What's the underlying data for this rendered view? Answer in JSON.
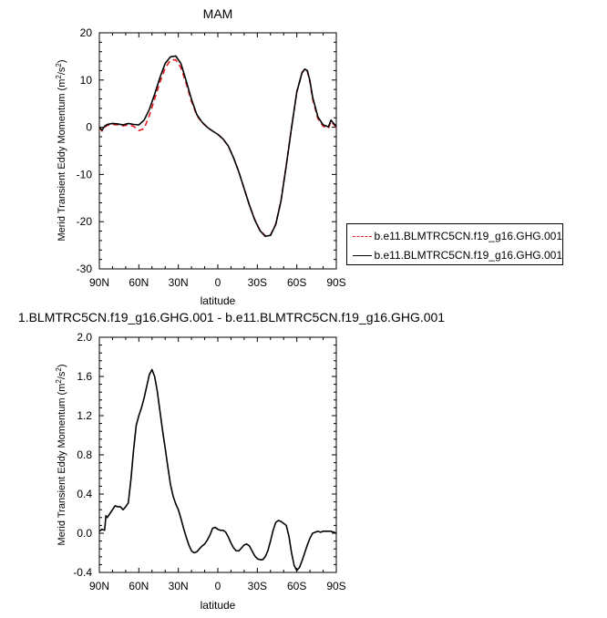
{
  "chart_data": [
    {
      "type": "line",
      "title": "MAM",
      "xlabel": "latitude",
      "ylabel": "Merid Transient Eddy Momentum (m²/s²)",
      "ylabel_main": "Merid Transient Eddy Momentum (m",
      "ylabel_sup": "2",
      "ylabel_mid": "/s",
      "ylabel_sup2": "2",
      "ylabel_end": ")",
      "xlim": [
        90,
        -90
      ],
      "ylim": [
        -30,
        20
      ],
      "x_ticks": [
        90,
        60,
        30,
        0,
        -30,
        -60,
        -90
      ],
      "x_tick_labels": [
        "90N",
        "60N",
        "30N",
        "0",
        "30S",
        "60S",
        "90S"
      ],
      "y_ticks": [
        20,
        10,
        0,
        -10,
        -20,
        -30
      ],
      "y_tick_labels": [
        "20",
        "10",
        "0",
        "-10",
        "-20",
        "-30"
      ],
      "grid": false,
      "legend_position": "right",
      "series": [
        {
          "name": "b.e11.BLMTRC5CN.f19_g16.GHG.001",
          "color": "#e41a1c",
          "dash": "dashed",
          "x": [
            90,
            88,
            86,
            84,
            80,
            76,
            72,
            68,
            64,
            60,
            56,
            52,
            48,
            44,
            40,
            36,
            32,
            28,
            24,
            20,
            16,
            12,
            8,
            4,
            0,
            -4,
            -8,
            -12,
            -16,
            -20,
            -24,
            -28,
            -32,
            -36,
            -40,
            -44,
            -48,
            -52,
            -56,
            -60,
            -64,
            -66,
            -68,
            -70,
            -72,
            -76,
            -80,
            -84,
            -86,
            -88,
            -90
          ],
          "values": [
            0.0,
            -0.8,
            0.0,
            0.4,
            0.6,
            0.5,
            0.3,
            0.5,
            0.2,
            -0.7,
            -0.3,
            2.5,
            6.0,
            9.5,
            12.5,
            14.2,
            14.3,
            12.6,
            9.2,
            5.5,
            2.5,
            1.0,
            0.0,
            -0.8,
            -1.5,
            -2.5,
            -4.0,
            -6.5,
            -9.5,
            -13.0,
            -16.5,
            -19.5,
            -21.8,
            -23.0,
            -22.8,
            -20.5,
            -15.5,
            -8.0,
            0.0,
            7.5,
            11.5,
            12.2,
            11.8,
            9.5,
            6.0,
            1.8,
            0.2,
            -0.2,
            1.2,
            0.6,
            0.0
          ]
        },
        {
          "name": "b.e11.BLMTRC5CN.f19_g16.GHG.001",
          "color": "#000000",
          "dash": "solid",
          "x": [
            90,
            88,
            86,
            84,
            80,
            76,
            72,
            68,
            64,
            60,
            56,
            52,
            48,
            44,
            40,
            36,
            32,
            28,
            24,
            20,
            16,
            12,
            8,
            4,
            0,
            -4,
            -8,
            -12,
            -16,
            -20,
            -24,
            -28,
            -32,
            -36,
            -40,
            -44,
            -48,
            -52,
            -56,
            -60,
            -64,
            -66,
            -68,
            -70,
            -72,
            -76,
            -80,
            -84,
            -86,
            -88,
            -90
          ],
          "values": [
            0.0,
            -0.6,
            0.2,
            0.6,
            0.8,
            0.7,
            0.5,
            0.8,
            0.6,
            0.5,
            1.5,
            3.8,
            7.0,
            10.5,
            13.5,
            14.9,
            15.1,
            13.5,
            9.8,
            5.9,
            2.7,
            1.1,
            0.0,
            -0.8,
            -1.5,
            -2.5,
            -4.0,
            -6.5,
            -9.5,
            -13.0,
            -16.5,
            -19.6,
            -21.9,
            -23.1,
            -22.9,
            -20.6,
            -15.6,
            -8.1,
            -0.1,
            7.5,
            11.6,
            12.3,
            12.0,
            9.8,
            6.4,
            2.2,
            0.5,
            0.1,
            1.5,
            0.8,
            0.2
          ]
        }
      ]
    },
    {
      "type": "line",
      "title": "1.BLMTRC5CN.f19_g16.GHG.001 - b.e11.BLMTRC5CN.f19_g16.GHG.001",
      "xlabel": "latitude",
      "ylabel": "Merid Transient Eddy Momentum (m²/s²)",
      "ylabel_main": "Merid Transient Eddy Momentum (m",
      "ylabel_sup": "2",
      "ylabel_mid": "/s",
      "ylabel_sup2": "2",
      "ylabel_end": ")",
      "xlim": [
        90,
        -90
      ],
      "ylim": [
        -0.4,
        2.0
      ],
      "x_ticks": [
        90,
        60,
        30,
        0,
        -30,
        -60,
        -90
      ],
      "x_tick_labels": [
        "90N",
        "60N",
        "30N",
        "0",
        "30S",
        "60S",
        "90S"
      ],
      "y_ticks": [
        2.0,
        1.6,
        1.2,
        0.8,
        0.4,
        0.0,
        -0.4
      ],
      "y_tick_labels": [
        "2.0",
        "1.6",
        "1.2",
        "0.8",
        "0.4",
        "0.0",
        "-0.4"
      ],
      "grid": false,
      "series": [
        {
          "color": "#000000",
          "dash": "solid",
          "x": [
            90,
            88,
            86,
            85,
            84,
            82,
            80,
            78,
            76,
            74,
            72,
            70,
            68,
            66,
            64,
            62,
            60,
            58,
            56,
            54,
            52,
            50,
            48,
            46,
            44,
            42,
            40,
            38,
            36,
            34,
            32,
            30,
            28,
            26,
            24,
            22,
            20,
            18,
            16,
            14,
            12,
            10,
            8,
            6,
            4,
            2,
            0,
            -2,
            -4,
            -6,
            -8,
            -10,
            -12,
            -14,
            -16,
            -18,
            -20,
            -22,
            -24,
            -26,
            -28,
            -30,
            -32,
            -34,
            -36,
            -38,
            -40,
            -42,
            -44,
            -46,
            -48,
            -50,
            -52,
            -54,
            -56,
            -58,
            -60,
            -62,
            -64,
            -66,
            -68,
            -70,
            -72,
            -74,
            -76,
            -78,
            -80,
            -82,
            -84,
            -86,
            -88,
            -90
          ],
          "values": [
            0.02,
            0.04,
            0.03,
            0.18,
            0.16,
            0.2,
            0.24,
            0.28,
            0.27,
            0.27,
            0.24,
            0.27,
            0.31,
            0.55,
            0.85,
            1.1,
            1.2,
            1.28,
            1.38,
            1.5,
            1.62,
            1.67,
            1.6,
            1.45,
            1.25,
            1.05,
            0.87,
            0.68,
            0.5,
            0.38,
            0.3,
            0.24,
            0.15,
            0.05,
            -0.04,
            -0.12,
            -0.18,
            -0.2,
            -0.19,
            -0.16,
            -0.13,
            -0.11,
            -0.07,
            -0.02,
            0.05,
            0.06,
            0.04,
            0.03,
            0.03,
            0.01,
            -0.04,
            -0.1,
            -0.15,
            -0.18,
            -0.18,
            -0.15,
            -0.12,
            -0.11,
            -0.13,
            -0.18,
            -0.23,
            -0.26,
            -0.27,
            -0.27,
            -0.24,
            -0.18,
            -0.08,
            0.03,
            0.11,
            0.13,
            0.12,
            0.1,
            0.08,
            -0.03,
            -0.2,
            -0.33,
            -0.38,
            -0.35,
            -0.28,
            -0.2,
            -0.12,
            -0.05,
            0.0,
            0.01,
            0.02,
            0.01,
            0.02,
            0.02,
            0.02,
            0.02,
            0.01,
            0.0
          ]
        }
      ]
    }
  ]
}
